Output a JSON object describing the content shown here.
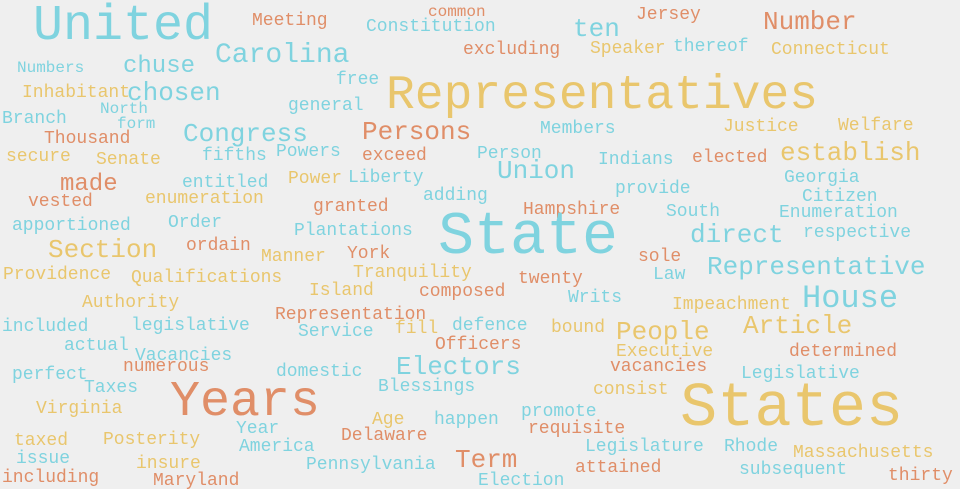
{
  "colors": {
    "cyan": "#7fd3df",
    "yellow": "#e9c66d",
    "orange": "#e08e68"
  },
  "words": [
    "United",
    "Meeting",
    "common",
    "Constitution",
    "ten",
    "Jersey",
    "Number",
    "Carolina",
    "excluding",
    "Speaker",
    "thereof",
    "Connecticut",
    "Numbers",
    "chuse",
    "free",
    "Representatives",
    "Inhabitant",
    "chosen",
    "North",
    "general",
    "Branch",
    "form",
    "Congress",
    "Persons",
    "Members",
    "Justice",
    "Welfare",
    "Thousand",
    "Powers",
    "secure",
    "Senate",
    "fifths",
    "exceed",
    "Person",
    "Indians",
    "elected",
    "establish",
    "Union",
    "Liberty",
    "made",
    "entitled",
    "Power",
    "Georgia",
    "vested",
    "enumeration",
    "adding",
    "provide",
    "Citizen",
    "granted",
    "Hampshire",
    "South",
    "Enumeration",
    "apportioned",
    "Order",
    "Plantations",
    "State",
    "direct",
    "respective",
    "Section",
    "ordain",
    "Manner",
    "York",
    "sole",
    "Representative",
    "Providence",
    "Qualifications",
    "Tranquility",
    "twenty",
    "Law",
    "Authority",
    "Island",
    "composed",
    "Writs",
    "House",
    "Impeachment",
    "Representation",
    "included",
    "legislative",
    "fill",
    "defence",
    "bound",
    "People",
    "Article",
    "Service",
    "actual",
    "Officers",
    "Executive",
    "determined",
    "Vacancies",
    "Electors",
    "numerous",
    "vacancies",
    "perfect",
    "domestic",
    "Legislative",
    "Taxes",
    "Blessings",
    "consist",
    "Years",
    "States",
    "Virginia",
    "promote",
    "Age",
    "happen",
    "Year",
    "requisite",
    "Delaware",
    "taxed",
    "Posterity",
    "America",
    "Legislature",
    "Rhode",
    "issue",
    "Massachusetts",
    "Term",
    "insure",
    "Pennsylvania",
    "attained",
    "subsequent",
    "including",
    "Maryland",
    "Election",
    "thirty"
  ]
}
